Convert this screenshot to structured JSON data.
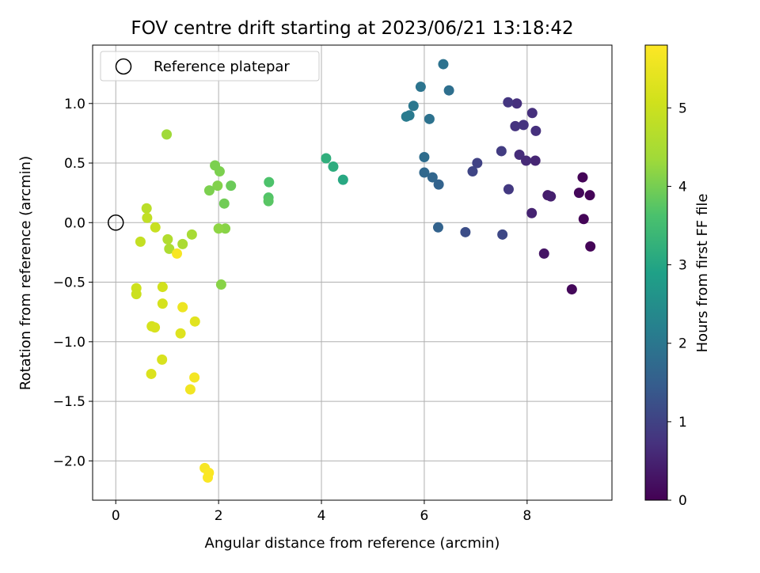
{
  "chart_data": {
    "type": "scatter",
    "title": "FOV centre drift starting at 2023/06/21 13:18:42",
    "xlabel": "Angular distance from reference (arcmin)",
    "ylabel": "Rotation from reference (arcmin)",
    "xlim": [
      -0.45,
      9.65
    ],
    "ylim": [
      -2.33,
      1.49
    ],
    "xticks": [
      0,
      2,
      4,
      6,
      8
    ],
    "xtick_labels": [
      "0",
      "2",
      "4",
      "6",
      "8"
    ],
    "yticks": [
      -2.0,
      -1.5,
      -1.0,
      -0.5,
      0.0,
      0.5,
      1.0
    ],
    "ytick_labels": [
      "−2.0",
      "−1.5",
      "−1.0",
      "−0.5",
      "0.0",
      "0.5",
      "1.0"
    ],
    "grid": true,
    "legend": {
      "placement": "top-left",
      "entries": [
        {
          "label": "Reference platepar",
          "marker": "open-circle"
        }
      ]
    },
    "reference_point": {
      "x": 0,
      "y": 0
    },
    "colorbar": {
      "label": "Hours from first FF file",
      "colormap": "viridis",
      "range": [
        0,
        5.8
      ],
      "ticks": [
        0,
        1,
        2,
        3,
        4,
        5
      ],
      "tick_labels": [
        "0",
        "1",
        "2",
        "3",
        "4",
        "5"
      ]
    },
    "points": [
      {
        "x": 9.08,
        "y": 0.38,
        "hours": 0.05
      },
      {
        "x": 9.22,
        "y": 0.23,
        "hours": 0.05
      },
      {
        "x": 9.01,
        "y": 0.25,
        "hours": 0.1
      },
      {
        "x": 9.1,
        "y": 0.03,
        "hours": 0.05
      },
      {
        "x": 9.23,
        "y": -0.2,
        "hours": 0.05
      },
      {
        "x": 8.87,
        "y": -0.56,
        "hours": 0.1
      },
      {
        "x": 8.33,
        "y": -0.26,
        "hours": 0.3
      },
      {
        "x": 8.4,
        "y": 0.23,
        "hours": 0.4
      },
      {
        "x": 8.46,
        "y": 0.22,
        "hours": 0.45
      },
      {
        "x": 8.09,
        "y": 0.08,
        "hours": 0.5
      },
      {
        "x": 8.16,
        "y": 0.52,
        "hours": 0.55
      },
      {
        "x": 7.98,
        "y": 0.52,
        "hours": 0.6
      },
      {
        "x": 7.85,
        "y": 0.57,
        "hours": 0.65
      },
      {
        "x": 8.17,
        "y": 0.77,
        "hours": 0.7
      },
      {
        "x": 8.1,
        "y": 0.92,
        "hours": 0.7
      },
      {
        "x": 7.93,
        "y": 0.82,
        "hours": 0.75
      },
      {
        "x": 7.77,
        "y": 0.81,
        "hours": 0.75
      },
      {
        "x": 7.8,
        "y": 1.0,
        "hours": 0.7
      },
      {
        "x": 7.63,
        "y": 1.01,
        "hours": 0.8
      },
      {
        "x": 7.64,
        "y": 0.28,
        "hours": 0.85
      },
      {
        "x": 7.5,
        "y": 0.6,
        "hours": 0.9
      },
      {
        "x": 7.52,
        "y": -0.1,
        "hours": 1.1
      },
      {
        "x": 7.03,
        "y": 0.5,
        "hours": 1.0
      },
      {
        "x": 6.94,
        "y": 0.43,
        "hours": 1.05
      },
      {
        "x": 6.8,
        "y": -0.08,
        "hours": 1.2
      },
      {
        "x": 6.27,
        "y": -0.04,
        "hours": 1.6
      },
      {
        "x": 6.28,
        "y": 0.32,
        "hours": 1.6
      },
      {
        "x": 6.16,
        "y": 0.38,
        "hours": 1.65
      },
      {
        "x": 6.0,
        "y": 0.42,
        "hours": 1.7
      },
      {
        "x": 6.0,
        "y": 0.55,
        "hours": 1.8
      },
      {
        "x": 6.1,
        "y": 0.87,
        "hours": 1.9
      },
      {
        "x": 6.48,
        "y": 1.11,
        "hours": 1.85
      },
      {
        "x": 6.37,
        "y": 1.33,
        "hours": 1.9
      },
      {
        "x": 5.93,
        "y": 1.14,
        "hours": 1.95
      },
      {
        "x": 5.79,
        "y": 0.98,
        "hours": 2.0
      },
      {
        "x": 5.71,
        "y": 0.9,
        "hours": 2.05
      },
      {
        "x": 5.65,
        "y": 0.89,
        "hours": 2.1
      },
      {
        "x": 4.42,
        "y": 0.36,
        "hours": 3.05
      },
      {
        "x": 4.23,
        "y": 0.47,
        "hours": 3.15
      },
      {
        "x": 4.09,
        "y": 0.54,
        "hours": 3.2
      },
      {
        "x": 2.98,
        "y": 0.34,
        "hours": 3.65
      },
      {
        "x": 2.97,
        "y": 0.21,
        "hours": 3.7
      },
      {
        "x": 2.97,
        "y": 0.18,
        "hours": 3.75
      },
      {
        "x": 2.24,
        "y": 0.31,
        "hours": 3.9
      },
      {
        "x": 2.11,
        "y": 0.16,
        "hours": 3.95
      },
      {
        "x": 2.02,
        "y": 0.43,
        "hours": 4.05
      },
      {
        "x": 1.93,
        "y": 0.48,
        "hours": 4.05
      },
      {
        "x": 1.98,
        "y": 0.31,
        "hours": 4.1
      },
      {
        "x": 1.82,
        "y": 0.27,
        "hours": 4.05
      },
      {
        "x": 2.13,
        "y": -0.05,
        "hours": 4.15
      },
      {
        "x": 2.0,
        "y": -0.05,
        "hours": 4.2
      },
      {
        "x": 2.05,
        "y": -0.52,
        "hours": 4.15
      },
      {
        "x": 0.99,
        "y": 0.74,
        "hours": 4.35
      },
      {
        "x": 1.48,
        "y": -0.1,
        "hours": 4.45
      },
      {
        "x": 1.3,
        "y": -0.18,
        "hours": 4.5
      },
      {
        "x": 1.04,
        "y": -0.22,
        "hours": 4.55
      },
      {
        "x": 1.01,
        "y": -0.14,
        "hours": 4.6
      },
      {
        "x": 0.6,
        "y": 0.12,
        "hours": 4.75
      },
      {
        "x": 0.61,
        "y": 0.04,
        "hours": 4.85
      },
      {
        "x": 0.77,
        "y": -0.04,
        "hours": 4.95
      },
      {
        "x": 0.48,
        "y": -0.16,
        "hours": 4.9
      },
      {
        "x": 0.4,
        "y": -0.55,
        "hours": 5.05
      },
      {
        "x": 0.4,
        "y": -0.6,
        "hours": 5.0
      },
      {
        "x": 0.91,
        "y": -0.54,
        "hours": 5.1
      },
      {
        "x": 0.91,
        "y": -0.68,
        "hours": 5.15
      },
      {
        "x": 0.7,
        "y": -0.87,
        "hours": 5.15
      },
      {
        "x": 0.76,
        "y": -0.88,
        "hours": 5.2
      },
      {
        "x": 0.9,
        "y": -1.15,
        "hours": 5.2
      },
      {
        "x": 0.69,
        "y": -1.27,
        "hours": 5.25
      },
      {
        "x": 1.54,
        "y": -0.83,
        "hours": 5.35
      },
      {
        "x": 1.26,
        "y": -0.93,
        "hours": 5.3
      },
      {
        "x": 1.3,
        "y": -0.71,
        "hours": 5.55
      },
      {
        "x": 1.19,
        "y": -0.26,
        "hours": 5.7
      },
      {
        "x": 1.53,
        "y": -1.3,
        "hours": 5.65
      },
      {
        "x": 1.45,
        "y": -1.4,
        "hours": 5.6
      },
      {
        "x": 1.73,
        "y": -2.06,
        "hours": 5.7
      },
      {
        "x": 1.81,
        "y": -2.1,
        "hours": 5.75
      },
      {
        "x": 1.79,
        "y": -2.14,
        "hours": 5.75
      }
    ]
  }
}
